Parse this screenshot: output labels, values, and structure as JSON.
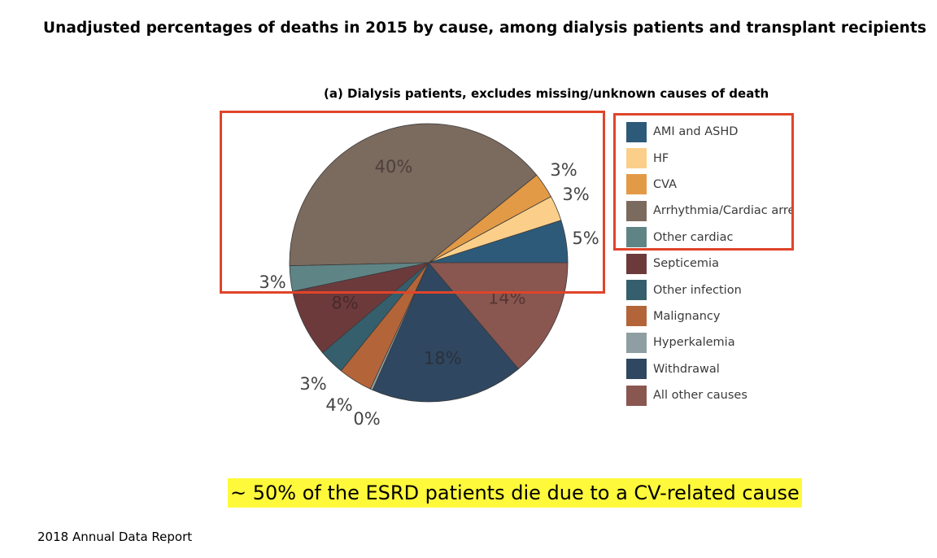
{
  "header": {
    "title": "Unadjusted percentages of deaths in 2015 by cause, among dialysis patients and transplant recipients"
  },
  "chart_data": {
    "type": "pie",
    "title": "(a) Dialysis patients, excludes missing/unknown causes of death",
    "slices": [
      {
        "name": "AMI and ASHD",
        "value": 5,
        "label": "5%",
        "color": "#2e5a7a"
      },
      {
        "name": "HF",
        "value": 3,
        "label": "3%",
        "color": "#fbcf8a"
      },
      {
        "name": "CVA",
        "value": 3,
        "label": "3%",
        "color": "#e39a46"
      },
      {
        "name": "Arrhythmia/Cardiac arrest",
        "legend_label": "Arrhythmia/Cardiac arres",
        "value": 40,
        "label": "40%",
        "color": "#7b6a5e"
      },
      {
        "name": "Other cardiac",
        "value": 3,
        "label": "3%",
        "color": "#5f8486"
      },
      {
        "name": "Septicemia",
        "value": 8,
        "label": "8%",
        "color": "#6d3a3c"
      },
      {
        "name": "Other infection",
        "value": 3,
        "label": "3%",
        "color": "#355f6c"
      },
      {
        "name": "Malignancy",
        "value": 4,
        "label": "4%",
        "color": "#b36539"
      },
      {
        "name": "Hyperkalemia",
        "value": 0.3,
        "label": "0%",
        "color": "#8e9ea2"
      },
      {
        "name": "Withdrawal",
        "value": 18,
        "label": "18%",
        "color": "#2f4760"
      },
      {
        "name": "All other causes",
        "value": 14,
        "label": "14%",
        "color": "#8a5650"
      }
    ]
  },
  "callout": {
    "text": "~ 50% of the ESRD patients die due to a CV-related cause",
    "color": "#fff93b"
  },
  "footer": {
    "source": "2018 Annual Data Report"
  },
  "highlight": {
    "color": "#e0442a"
  }
}
